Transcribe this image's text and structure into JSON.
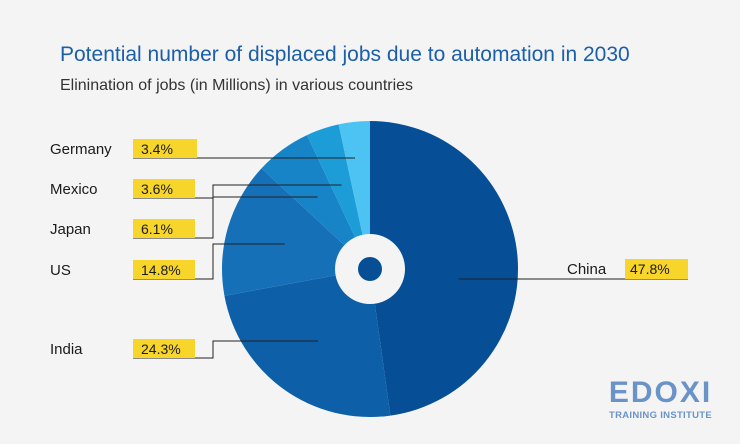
{
  "header": {
    "title": "Potential number of displaced jobs due to automation in 2030",
    "subtitle": "Elinination of jobs (in Millions) in various countries"
  },
  "logo": {
    "main": "EDOXI",
    "sub": "TRAINING INSTITUTE"
  },
  "colors": {
    "background": "#f4f4f4",
    "title": "#1b5fa8",
    "label_highlight": "#f7d52a",
    "leader_line": "#222222"
  },
  "chart_data": {
    "type": "pie",
    "title": "Potential number of displaced jobs due to automation in 2030",
    "subtitle": "Elinination of jobs (in Millions) in various countries",
    "series": [
      {
        "name": "China",
        "value": 47.8,
        "label": "47.8%",
        "color": "#064f97"
      },
      {
        "name": "India",
        "value": 24.3,
        "label": "24.3%",
        "color": "#0d5fa8"
      },
      {
        "name": "US",
        "value": 14.8,
        "label": "14.8%",
        "color": "#1570b8"
      },
      {
        "name": "Japan",
        "value": 6.1,
        "label": "6.1%",
        "color": "#1684c6"
      },
      {
        "name": "Mexico",
        "value": 3.6,
        "label": "3.6%",
        "color": "#1d9dd8"
      },
      {
        "name": "Germany",
        "value": 3.4,
        "label": "3.4%",
        "color": "#4cc3f2"
      }
    ],
    "legend": "none"
  }
}
